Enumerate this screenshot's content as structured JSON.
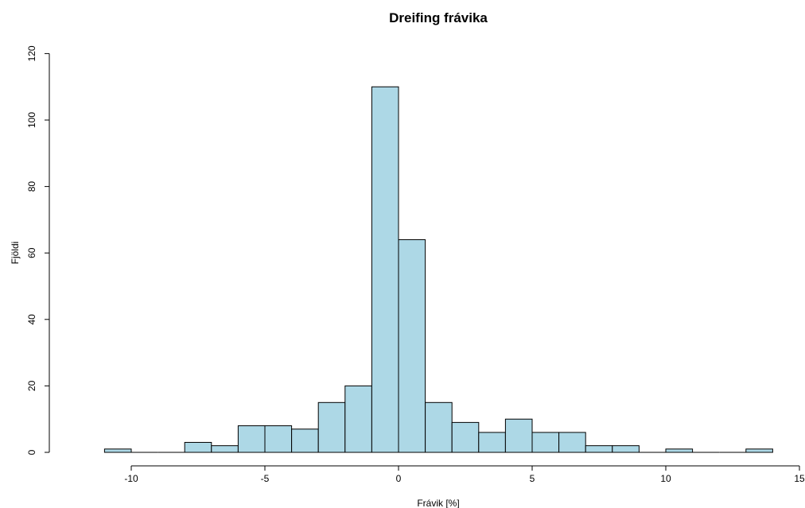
{
  "chart_data": {
    "type": "bar",
    "title": "Dreifing frávika",
    "xlabel": "Frávik [%]",
    "ylabel": "Fjöldi",
    "bin_width": 1,
    "bins": [
      {
        "start": -11,
        "end": -10,
        "count": 1
      },
      {
        "start": -10,
        "end": -9,
        "count": 0
      },
      {
        "start": -9,
        "end": -8,
        "count": 0
      },
      {
        "start": -8,
        "end": -7,
        "count": 3
      },
      {
        "start": -7,
        "end": -6,
        "count": 2
      },
      {
        "start": -6,
        "end": -5,
        "count": 8
      },
      {
        "start": -5,
        "end": -4,
        "count": 8
      },
      {
        "start": -4,
        "end": -3,
        "count": 7
      },
      {
        "start": -3,
        "end": -2,
        "count": 15
      },
      {
        "start": -2,
        "end": -1,
        "count": 20
      },
      {
        "start": -1,
        "end": 0,
        "count": 110
      },
      {
        "start": 0,
        "end": 1,
        "count": 64
      },
      {
        "start": 1,
        "end": 2,
        "count": 15
      },
      {
        "start": 2,
        "end": 3,
        "count": 9
      },
      {
        "start": 3,
        "end": 4,
        "count": 6
      },
      {
        "start": 4,
        "end": 5,
        "count": 10
      },
      {
        "start": 5,
        "end": 6,
        "count": 6
      },
      {
        "start": 6,
        "end": 7,
        "count": 6
      },
      {
        "start": 7,
        "end": 8,
        "count": 2
      },
      {
        "start": 8,
        "end": 9,
        "count": 2
      },
      {
        "start": 9,
        "end": 10,
        "count": 0
      },
      {
        "start": 10,
        "end": 11,
        "count": 1
      },
      {
        "start": 11,
        "end": 12,
        "count": 0
      },
      {
        "start": 12,
        "end": 13,
        "count": 0
      },
      {
        "start": 13,
        "end": 14,
        "count": 1
      }
    ],
    "xlim": [
      -11,
      15
    ],
    "ylim": [
      0,
      120
    ],
    "x_ticks": [
      -10,
      -5,
      0,
      5,
      10,
      15
    ],
    "y_ticks": [
      0,
      20,
      40,
      60,
      80,
      100,
      120
    ],
    "bar_color": "#add8e6",
    "grid": false
  }
}
